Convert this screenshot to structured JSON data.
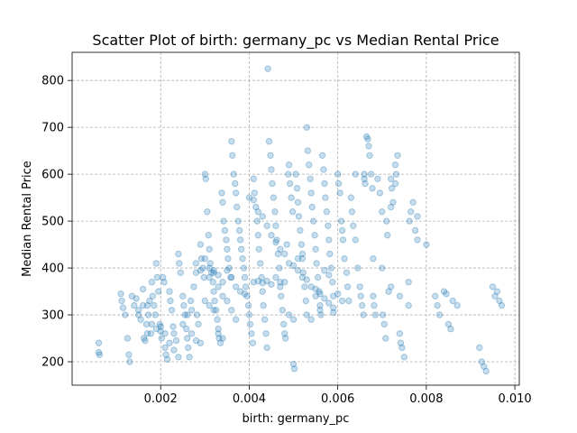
{
  "chart_data": {
    "type": "scatter",
    "title": "Scatter Plot of birth: germany_pc vs Median Rental Price",
    "xlabel": "birth: germany_pc",
    "ylabel": "Median Rental Price",
    "xlim": [
      0.0,
      0.0101
    ],
    "ylim": [
      150,
      860
    ],
    "xticks": [
      0.002,
      0.004,
      0.006,
      0.008,
      0.01
    ],
    "xtick_labels": [
      "0.002",
      "0.004",
      "0.006",
      "0.008",
      "0.010"
    ],
    "yticks": [
      200,
      300,
      400,
      500,
      600,
      700,
      800
    ],
    "ytick_labels": [
      "200",
      "300",
      "400",
      "500",
      "600",
      "700",
      "800"
    ],
    "grid": true,
    "color": "#1f77b4",
    "points": [
      [
        0.0006,
        240
      ],
      [
        0.0006,
        220
      ],
      [
        0.00062,
        215
      ],
      [
        0.0011,
        345
      ],
      [
        0.00112,
        330
      ],
      [
        0.00115,
        315
      ],
      [
        0.0012,
        300
      ],
      [
        0.00125,
        250
      ],
      [
        0.00128,
        215
      ],
      [
        0.0013,
        200
      ],
      [
        0.00135,
        340
      ],
      [
        0.0014,
        320
      ],
      [
        0.00145,
        335
      ],
      [
        0.0015,
        310
      ],
      [
        0.00155,
        290
      ],
      [
        0.0016,
        355
      ],
      [
        0.00162,
        250
      ],
      [
        0.00165,
        245
      ],
      [
        0.00168,
        280
      ],
      [
        0.0017,
        320
      ],
      [
        0.00172,
        300
      ],
      [
        0.00175,
        330
      ],
      [
        0.00178,
        260
      ],
      [
        0.0018,
        370
      ],
      [
        0.00182,
        340
      ],
      [
        0.00185,
        320
      ],
      [
        0.00188,
        300
      ],
      [
        0.0019,
        410
      ],
      [
        0.00192,
        380
      ],
      [
        0.00195,
        350
      ],
      [
        0.00198,
        280
      ],
      [
        0.002,
        265
      ],
      [
        0.00202,
        250
      ],
      [
        0.00205,
        380
      ],
      [
        0.00208,
        370
      ],
      [
        0.0021,
        230
      ],
      [
        0.00212,
        215
      ],
      [
        0.00215,
        205
      ],
      [
        0.0022,
        350
      ],
      [
        0.00222,
        330
      ],
      [
        0.00225,
        310
      ],
      [
        0.00228,
        275
      ],
      [
        0.0023,
        260
      ],
      [
        0.00235,
        245
      ],
      [
        0.0024,
        430
      ],
      [
        0.00242,
        410
      ],
      [
        0.00245,
        390
      ],
      [
        0.0025,
        340
      ],
      [
        0.00252,
        320
      ],
      [
        0.00255,
        300
      ],
      [
        0.00258,
        270
      ],
      [
        0.0026,
        250
      ],
      [
        0.00262,
        230
      ],
      [
        0.00265,
        210
      ],
      [
        0.00268,
        330
      ],
      [
        0.0027,
        310
      ],
      [
        0.00275,
        360
      ],
      [
        0.0028,
        390
      ],
      [
        0.00282,
        300
      ],
      [
        0.00285,
        280
      ],
      [
        0.0029,
        450
      ],
      [
        0.00292,
        420
      ],
      [
        0.00295,
        400
      ],
      [
        0.00298,
        380
      ],
      [
        0.003,
        600
      ],
      [
        0.00302,
        590
      ],
      [
        0.00305,
        520
      ],
      [
        0.00308,
        470
      ],
      [
        0.0031,
        440
      ],
      [
        0.00312,
        410
      ],
      [
        0.00315,
        390
      ],
      [
        0.00318,
        370
      ],
      [
        0.0032,
        350
      ],
      [
        0.00322,
        330
      ],
      [
        0.00325,
        310
      ],
      [
        0.00328,
        290
      ],
      [
        0.0033,
        270
      ],
      [
        0.00332,
        250
      ],
      [
        0.00335,
        240
      ],
      [
        0.00338,
        560
      ],
      [
        0.0034,
        540
      ],
      [
        0.00342,
        500
      ],
      [
        0.00345,
        480
      ],
      [
        0.00348,
        460
      ],
      [
        0.0035,
        440
      ],
      [
        0.00352,
        420
      ],
      [
        0.00355,
        400
      ],
      [
        0.00358,
        380
      ],
      [
        0.0036,
        670
      ],
      [
        0.00362,
        640
      ],
      [
        0.00365,
        600
      ],
      [
        0.00368,
        580
      ],
      [
        0.0037,
        560
      ],
      [
        0.00372,
        530
      ],
      [
        0.00375,
        500
      ],
      [
        0.00378,
        480
      ],
      [
        0.0038,
        460
      ],
      [
        0.00382,
        440
      ],
      [
        0.00385,
        420
      ],
      [
        0.00388,
        400
      ],
      [
        0.0039,
        380
      ],
      [
        0.00392,
        360
      ],
      [
        0.00395,
        340
      ],
      [
        0.00398,
        320
      ],
      [
        0.004,
        300
      ],
      [
        0.00402,
        280
      ],
      [
        0.00405,
        260
      ],
      [
        0.00408,
        240
      ],
      [
        0.0041,
        590
      ],
      [
        0.00412,
        560
      ],
      [
        0.00415,
        530
      ],
      [
        0.00418,
        500
      ],
      [
        0.0042,
        470
      ],
      [
        0.00422,
        440
      ],
      [
        0.00425,
        410
      ],
      [
        0.00428,
        380
      ],
      [
        0.0043,
        350
      ],
      [
        0.00432,
        320
      ],
      [
        0.00435,
        290
      ],
      [
        0.00438,
        260
      ],
      [
        0.0044,
        230
      ],
      [
        0.00442,
        825
      ],
      [
        0.00445,
        670
      ],
      [
        0.00448,
        640
      ],
      [
        0.0045,
        610
      ],
      [
        0.00452,
        580
      ],
      [
        0.00455,
        550
      ],
      [
        0.00458,
        520
      ],
      [
        0.0046,
        490
      ],
      [
        0.00462,
        460
      ],
      [
        0.00465,
        430
      ],
      [
        0.00468,
        400
      ],
      [
        0.0047,
        370
      ],
      [
        0.00472,
        340
      ],
      [
        0.00475,
        310
      ],
      [
        0.00478,
        280
      ],
      [
        0.0048,
        260
      ],
      [
        0.00482,
        250
      ],
      [
        0.00485,
        450
      ],
      [
        0.00488,
        600
      ],
      [
        0.0049,
        620
      ],
      [
        0.00492,
        580
      ],
      [
        0.00495,
        550
      ],
      [
        0.00498,
        520
      ],
      [
        0.005,
        195
      ],
      [
        0.00502,
        185
      ],
      [
        0.00505,
        600
      ],
      [
        0.00508,
        570
      ],
      [
        0.0051,
        540
      ],
      [
        0.00512,
        510
      ],
      [
        0.00515,
        480
      ],
      [
        0.00518,
        450
      ],
      [
        0.0052,
        420
      ],
      [
        0.00522,
        390
      ],
      [
        0.00525,
        360
      ],
      [
        0.00528,
        330
      ],
      [
        0.0053,
        700
      ],
      [
        0.00532,
        650
      ],
      [
        0.00535,
        620
      ],
      [
        0.00538,
        590
      ],
      [
        0.0054,
        560
      ],
      [
        0.00542,
        530
      ],
      [
        0.00545,
        500
      ],
      [
        0.00548,
        470
      ],
      [
        0.0055,
        440
      ],
      [
        0.00552,
        410
      ],
      [
        0.00555,
        380
      ],
      [
        0.00558,
        350
      ],
      [
        0.0056,
        320
      ],
      [
        0.00562,
        300
      ],
      [
        0.00565,
        640
      ],
      [
        0.00568,
        610
      ],
      [
        0.0057,
        580
      ],
      [
        0.00572,
        550
      ],
      [
        0.00575,
        520
      ],
      [
        0.00578,
        490
      ],
      [
        0.0058,
        460
      ],
      [
        0.00582,
        430
      ],
      [
        0.00585,
        400
      ],
      [
        0.00588,
        370
      ],
      [
        0.0059,
        340
      ],
      [
        0.006,
        600
      ],
      [
        0.00602,
        580
      ],
      [
        0.00605,
        560
      ],
      [
        0.00608,
        500
      ],
      [
        0.0061,
        480
      ],
      [
        0.00612,
        460
      ],
      [
        0.00615,
        420
      ],
      [
        0.0062,
        390
      ],
      [
        0.00622,
        360
      ],
      [
        0.00625,
        330
      ],
      [
        0.0063,
        550
      ],
      [
        0.00632,
        520
      ],
      [
        0.00635,
        490
      ],
      [
        0.0064,
        460
      ],
      [
        0.00645,
        400
      ],
      [
        0.0065,
        360
      ],
      [
        0.00652,
        340
      ],
      [
        0.00655,
        320
      ],
      [
        0.00658,
        300
      ],
      [
        0.0066,
        600
      ],
      [
        0.00662,
        580
      ],
      [
        0.00665,
        680
      ],
      [
        0.00668,
        675
      ],
      [
        0.0067,
        660
      ],
      [
        0.00672,
        640
      ],
      [
        0.00675,
        600
      ],
      [
        0.00678,
        570
      ],
      [
        0.0068,
        340
      ],
      [
        0.00682,
        320
      ],
      [
        0.00685,
        300
      ],
      [
        0.0069,
        590
      ],
      [
        0.00695,
        560
      ],
      [
        0.007,
        520
      ],
      [
        0.00702,
        300
      ],
      [
        0.00705,
        280
      ],
      [
        0.00708,
        250
      ],
      [
        0.0071,
        500
      ],
      [
        0.00712,
        470
      ],
      [
        0.00715,
        350
      ],
      [
        0.0072,
        590
      ],
      [
        0.00722,
        570
      ],
      [
        0.00725,
        540
      ],
      [
        0.0073,
        620
      ],
      [
        0.00732,
        600
      ],
      [
        0.00735,
        640
      ],
      [
        0.0074,
        260
      ],
      [
        0.00742,
        240
      ],
      [
        0.00745,
        230
      ],
      [
        0.0075,
        210
      ],
      [
        0.0076,
        370
      ],
      [
        0.00762,
        500
      ],
      [
        0.00765,
        520
      ],
      [
        0.0077,
        540
      ],
      [
        0.00775,
        480
      ],
      [
        0.0078,
        460
      ],
      [
        0.008,
        450
      ],
      [
        0.0082,
        340
      ],
      [
        0.00825,
        320
      ],
      [
        0.0083,
        300
      ],
      [
        0.0084,
        350
      ],
      [
        0.00845,
        345
      ],
      [
        0.0085,
        280
      ],
      [
        0.00855,
        270
      ],
      [
        0.0086,
        330
      ],
      [
        0.0087,
        320
      ],
      [
        0.0092,
        230
      ],
      [
        0.00925,
        200
      ],
      [
        0.0093,
        190
      ],
      [
        0.00935,
        180
      ],
      [
        0.0095,
        360
      ],
      [
        0.00955,
        340
      ],
      [
        0.0096,
        350
      ],
      [
        0.00965,
        330
      ],
      [
        0.0097,
        320
      ],
      [
        0.0031,
        400
      ],
      [
        0.0032,
        390
      ],
      [
        0.0033,
        385
      ],
      [
        0.0034,
        370
      ],
      [
        0.0035,
        395
      ],
      [
        0.0036,
        380
      ],
      [
        0.0037,
        360
      ],
      [
        0.0038,
        350
      ],
      [
        0.0039,
        345
      ],
      [
        0.0041,
        370
      ],
      [
        0.0042,
        372
      ],
      [
        0.0043,
        368
      ],
      [
        0.0044,
        372
      ],
      [
        0.0045,
        365
      ],
      [
        0.0046,
        380
      ],
      [
        0.0047,
        360
      ],
      [
        0.0048,
        370
      ],
      [
        0.0049,
        300
      ],
      [
        0.005,
        290
      ],
      [
        0.0051,
        420
      ],
      [
        0.0052,
        430
      ],
      [
        0.0053,
        300
      ],
      [
        0.0054,
        290
      ],
      [
        0.0055,
        340
      ],
      [
        0.0056,
        310
      ],
      [
        0.0057,
        395
      ],
      [
        0.0058,
        385
      ],
      [
        0.0059,
        305
      ],
      [
        0.006,
        345
      ],
      [
        0.0061,
        330
      ],
      [
        0.0028,
        410
      ],
      [
        0.0029,
        395
      ],
      [
        0.003,
        420
      ],
      [
        0.0031,
        380
      ],
      [
        0.0032,
        395
      ],
      [
        0.0033,
        360
      ],
      [
        0.0034,
        340
      ],
      [
        0.0035,
        330
      ],
      [
        0.0036,
        310
      ],
      [
        0.0037,
        290
      ],
      [
        0.0025,
        280
      ],
      [
        0.0026,
        300
      ],
      [
        0.0027,
        260
      ],
      [
        0.0028,
        245
      ],
      [
        0.0029,
        240
      ],
      [
        0.003,
        330
      ],
      [
        0.0031,
        320
      ],
      [
        0.0032,
        310
      ],
      [
        0.0033,
        260
      ],
      [
        0.0034,
        250
      ],
      [
        0.004,
        550
      ],
      [
        0.0041,
        545
      ],
      [
        0.0042,
        520
      ],
      [
        0.0043,
        510
      ],
      [
        0.0044,
        490
      ],
      [
        0.0045,
        470
      ],
      [
        0.0046,
        455
      ],
      [
        0.0047,
        440
      ],
      [
        0.0048,
        430
      ],
      [
        0.0049,
        410
      ],
      [
        0.005,
        405
      ],
      [
        0.0051,
        395
      ],
      [
        0.0052,
        380
      ],
      [
        0.0053,
        375
      ],
      [
        0.0054,
        360
      ],
      [
        0.0055,
        355
      ],
      [
        0.0056,
        345
      ],
      [
        0.0057,
        335
      ],
      [
        0.0058,
        325
      ],
      [
        0.0059,
        315
      ],
      [
        0.0015,
        300
      ],
      [
        0.0016,
        320
      ],
      [
        0.0017,
        260
      ],
      [
        0.0018,
        280
      ],
      [
        0.0019,
        270
      ],
      [
        0.002,
        275
      ],
      [
        0.0021,
        260
      ],
      [
        0.0022,
        240
      ],
      [
        0.0023,
        225
      ],
      [
        0.0024,
        210
      ],
      [
        0.0064,
        600
      ],
      [
        0.0066,
        590
      ],
      [
        0.0068,
        420
      ],
      [
        0.007,
        400
      ],
      [
        0.0072,
        360
      ],
      [
        0.0074,
        340
      ],
      [
        0.0076,
        320
      ],
      [
        0.0078,
        510
      ],
      [
        0.0072,
        530
      ],
      [
        0.0073,
        580
      ]
    ]
  }
}
